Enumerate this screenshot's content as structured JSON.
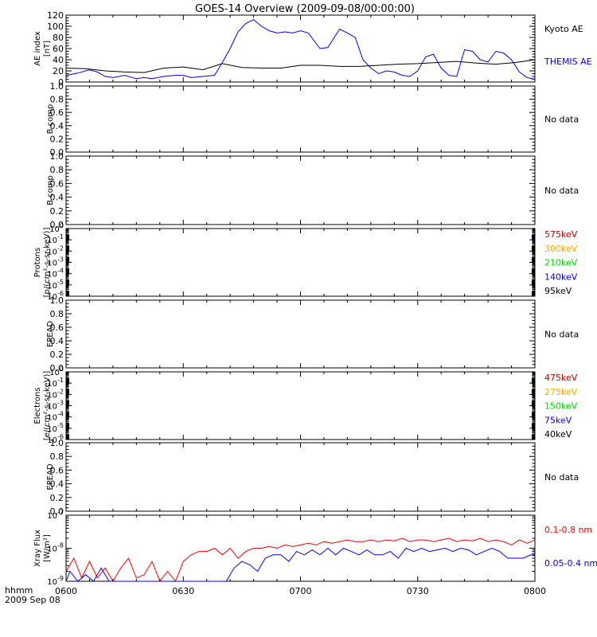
{
  "title": "GOES-14 Overview (2009-09-08/00:00:00)",
  "footer": {
    "time_label": "hhmm",
    "date_label": "2009 Sep 08"
  },
  "colors": {
    "black": "#000000",
    "blue": "#0000ff",
    "red": "#ff0000",
    "dark_red": "#c00000",
    "orange": "#ffaa00",
    "green": "#00dd00"
  },
  "chart_data": [
    {
      "id": "ae",
      "type": "line",
      "ylabel": "AE index\n[nT]",
      "ylim": [
        0,
        120
      ],
      "yticks": [
        "0",
        "20",
        "40",
        "60",
        "80",
        "100",
        "120"
      ],
      "yscale": "linear",
      "xlim": [
        "0600",
        "0800"
      ],
      "xticks": [
        "0600",
        "0630",
        "0700",
        "0730",
        "0800"
      ],
      "legend_placement": "right",
      "series": [
        {
          "name": "Kyoto AE",
          "color": "#000000",
          "x": [
            0,
            5,
            10,
            15,
            20,
            25,
            30,
            35,
            40,
            45,
            50,
            55,
            60,
            65,
            70,
            75,
            80,
            85,
            90,
            95,
            100,
            105,
            110,
            115,
            120
          ],
          "y": [
            25,
            24,
            20,
            18,
            17,
            25,
            27,
            22,
            33,
            26,
            25,
            25,
            30,
            30,
            28,
            28,
            30,
            32,
            33,
            35,
            37,
            34,
            32,
            35,
            40
          ]
        },
        {
          "name": "THEMIS AE",
          "color": "#0000ff",
          "x": [
            0,
            3,
            6,
            8,
            10,
            12,
            15,
            18,
            20,
            22,
            25,
            28,
            30,
            32,
            35,
            38,
            40,
            42,
            44,
            46,
            48,
            50,
            52,
            54,
            56,
            58,
            60,
            62,
            65,
            67,
            70,
            72,
            74,
            76,
            78,
            80,
            82,
            84,
            86,
            88,
            90,
            92,
            94,
            96,
            98,
            100,
            102,
            104,
            106,
            108,
            110,
            112,
            114,
            116,
            118,
            120
          ],
          "y": [
            12,
            16,
            22,
            18,
            10,
            8,
            12,
            6,
            8,
            6,
            10,
            12,
            12,
            8,
            10,
            12,
            35,
            60,
            90,
            105,
            112,
            100,
            92,
            88,
            90,
            88,
            92,
            88,
            60,
            62,
            95,
            88,
            80,
            40,
            25,
            15,
            20,
            18,
            12,
            10,
            20,
            45,
            50,
            25,
            12,
            10,
            58,
            55,
            40,
            36,
            55,
            52,
            40,
            18,
            8,
            5
          ]
        }
      ]
    },
    {
      "id": "bcomp1",
      "type": "line",
      "ylabel": "B comp",
      "ylim": [
        0,
        1
      ],
      "yticks": [
        "0.0",
        "0.2",
        "0.4",
        "0.6",
        "0.8",
        "1.0"
      ],
      "yscale": "linear",
      "xlim": [
        "0600",
        "0800"
      ],
      "series": [],
      "annotation": "No data"
    },
    {
      "id": "bcomp2",
      "type": "line",
      "ylabel": "B comp",
      "ylim": [
        0,
        1
      ],
      "yticks": [
        "0.0",
        "0.2",
        "0.4",
        "0.6",
        "0.8",
        "1.0"
      ],
      "yscale": "linear",
      "xlim": [
        "0600",
        "0800"
      ],
      "series": [],
      "annotation": "No data"
    },
    {
      "id": "protons",
      "type": "line",
      "ylabel": "Protons\n[p/(cm²-s-sr-keV)]",
      "yscale": "log",
      "ylim": [
        1e-06,
        1
      ],
      "ytick_exponents": [
        0,
        -1,
        -2,
        -3,
        -4,
        -5,
        -6
      ],
      "xlim": [
        "0600",
        "0800"
      ],
      "series": [
        {
          "name": "575keV",
          "color": "#c00000"
        },
        {
          "name": "300keV",
          "color": "#ffaa00"
        },
        {
          "name": "210keV",
          "color": "#00dd00"
        },
        {
          "name": "140keV",
          "color": "#0000ff"
        },
        {
          "name": "95keV",
          "color": "#000000"
        }
      ]
    },
    {
      "id": "epead1",
      "type": "line",
      "ylabel": "EPEAD",
      "ylim": [
        0,
        1
      ],
      "yticks": [
        "0.0",
        "0.2",
        "0.4",
        "0.6",
        "0.8",
        "1.0"
      ],
      "yscale": "linear",
      "xlim": [
        "0600",
        "0800"
      ],
      "series": [],
      "annotation": "No data"
    },
    {
      "id": "electrons",
      "type": "line",
      "ylabel": "Electrons\n[e/(cm²-s-sr-keV)]",
      "yscale": "log",
      "ylim": [
        1e-06,
        1
      ],
      "ytick_exponents": [
        0,
        -1,
        -2,
        -3,
        -4,
        -5,
        -6
      ],
      "xlim": [
        "0600",
        "0800"
      ],
      "series": [
        {
          "name": "475keV",
          "color": "#c00000"
        },
        {
          "name": "275keV",
          "color": "#ffaa00"
        },
        {
          "name": "150keV",
          "color": "#00dd00"
        },
        {
          "name": "75keV",
          "color": "#0000ff"
        },
        {
          "name": "40keV",
          "color": "#000000"
        }
      ]
    },
    {
      "id": "epead2",
      "type": "line",
      "ylabel": "EPEAD",
      "ylim": [
        0,
        1
      ],
      "yticks": [
        "0.0",
        "0.2",
        "0.4",
        "0.6",
        "0.8",
        "1.0"
      ],
      "yscale": "linear",
      "xlim": [
        "0600",
        "0800"
      ],
      "series": [],
      "annotation": "No data"
    },
    {
      "id": "xray",
      "type": "line",
      "ylabel": "Xray Flux\n[W/m²]",
      "yscale": "log",
      "ylim": [
        1e-09,
        1e-07
      ],
      "ytick_exponents": [
        -7,
        -8,
        -9
      ],
      "xlim": [
        "0600",
        "0800"
      ],
      "xticks": [
        "0600",
        "0630",
        "0700",
        "0730",
        "0800"
      ],
      "series": [
        {
          "name": "0.1-0.8 nm",
          "color": "#ff0000",
          "x": [
            0,
            2,
            4,
            6,
            8,
            10,
            12,
            14,
            16,
            18,
            20,
            22,
            24,
            26,
            28,
            30,
            32,
            34,
            36,
            38,
            40,
            42,
            44,
            46,
            48,
            50,
            52,
            54,
            56,
            58,
            60,
            62,
            64,
            66,
            68,
            70,
            72,
            74,
            76,
            78,
            80,
            82,
            84,
            86,
            88,
            90,
            92,
            94,
            96,
            98,
            100,
            102,
            104,
            106,
            108,
            110,
            112,
            114,
            116,
            118,
            120
          ],
          "y": [
            -8.7,
            -8.3,
            -8.9,
            -8.4,
            -8.9,
            -8.6,
            -9.0,
            -8.6,
            -8.3,
            -8.9,
            -8.8,
            -8.4,
            -9.0,
            -8.7,
            -9.0,
            -8.4,
            -8.2,
            -8.1,
            -8.1,
            -8.0,
            -8.2,
            -8.0,
            -8.3,
            -8.1,
            -8.0,
            -8.0,
            -7.95,
            -8.0,
            -7.9,
            -7.95,
            -7.9,
            -7.85,
            -7.9,
            -7.8,
            -7.85,
            -7.8,
            -7.75,
            -7.8,
            -7.8,
            -7.75,
            -7.8,
            -7.75,
            -7.78,
            -7.7,
            -7.8,
            -7.75,
            -7.75,
            -7.8,
            -7.75,
            -7.7,
            -7.8,
            -7.75,
            -7.78,
            -7.7,
            -7.8,
            -7.75,
            -7.8,
            -7.9,
            -7.75,
            -7.85,
            -7.75
          ]
        },
        {
          "name": "0.05-0.4 nm",
          "color": "#0000ff",
          "x": [
            0,
            1,
            3,
            5,
            7,
            9,
            11,
            13,
            15,
            17,
            19,
            21,
            23,
            25,
            27,
            29,
            31,
            33,
            35,
            37,
            39,
            41,
            43,
            45,
            47,
            49,
            51,
            53,
            55,
            57,
            59,
            61,
            63,
            65,
            67,
            69,
            71,
            73,
            75,
            77,
            79,
            81,
            83,
            85,
            87,
            89,
            91,
            93,
            95,
            97,
            99,
            101,
            103,
            105,
            107,
            109,
            111,
            113,
            115,
            117,
            119,
            120
          ],
          "y": [
            -9.0,
            -8.7,
            -9.0,
            -8.8,
            -9.0,
            -8.6,
            -9.0,
            -9.1,
            -9.3,
            -9.3,
            -9.3,
            -9.3,
            -9.3,
            -9.3,
            -9.3,
            -9.3,
            -9.3,
            -9.3,
            -9.3,
            -9.3,
            -9.3,
            -9.0,
            -8.6,
            -8.4,
            -8.5,
            -8.7,
            -8.3,
            -8.2,
            -8.2,
            -8.4,
            -8.1,
            -8.2,
            -8.05,
            -8.2,
            -8.0,
            -8.2,
            -8.0,
            -8.1,
            -8.2,
            -8.05,
            -8.2,
            -8.2,
            -8.1,
            -8.3,
            -8.0,
            -8.1,
            -8.0,
            -8.1,
            -8.05,
            -8.0,
            -8.1,
            -8.0,
            -8.05,
            -8.2,
            -8.1,
            -8.0,
            -8.1,
            -8.3,
            -8.3,
            -8.3,
            -8.2,
            -8.2
          ]
        }
      ]
    }
  ]
}
